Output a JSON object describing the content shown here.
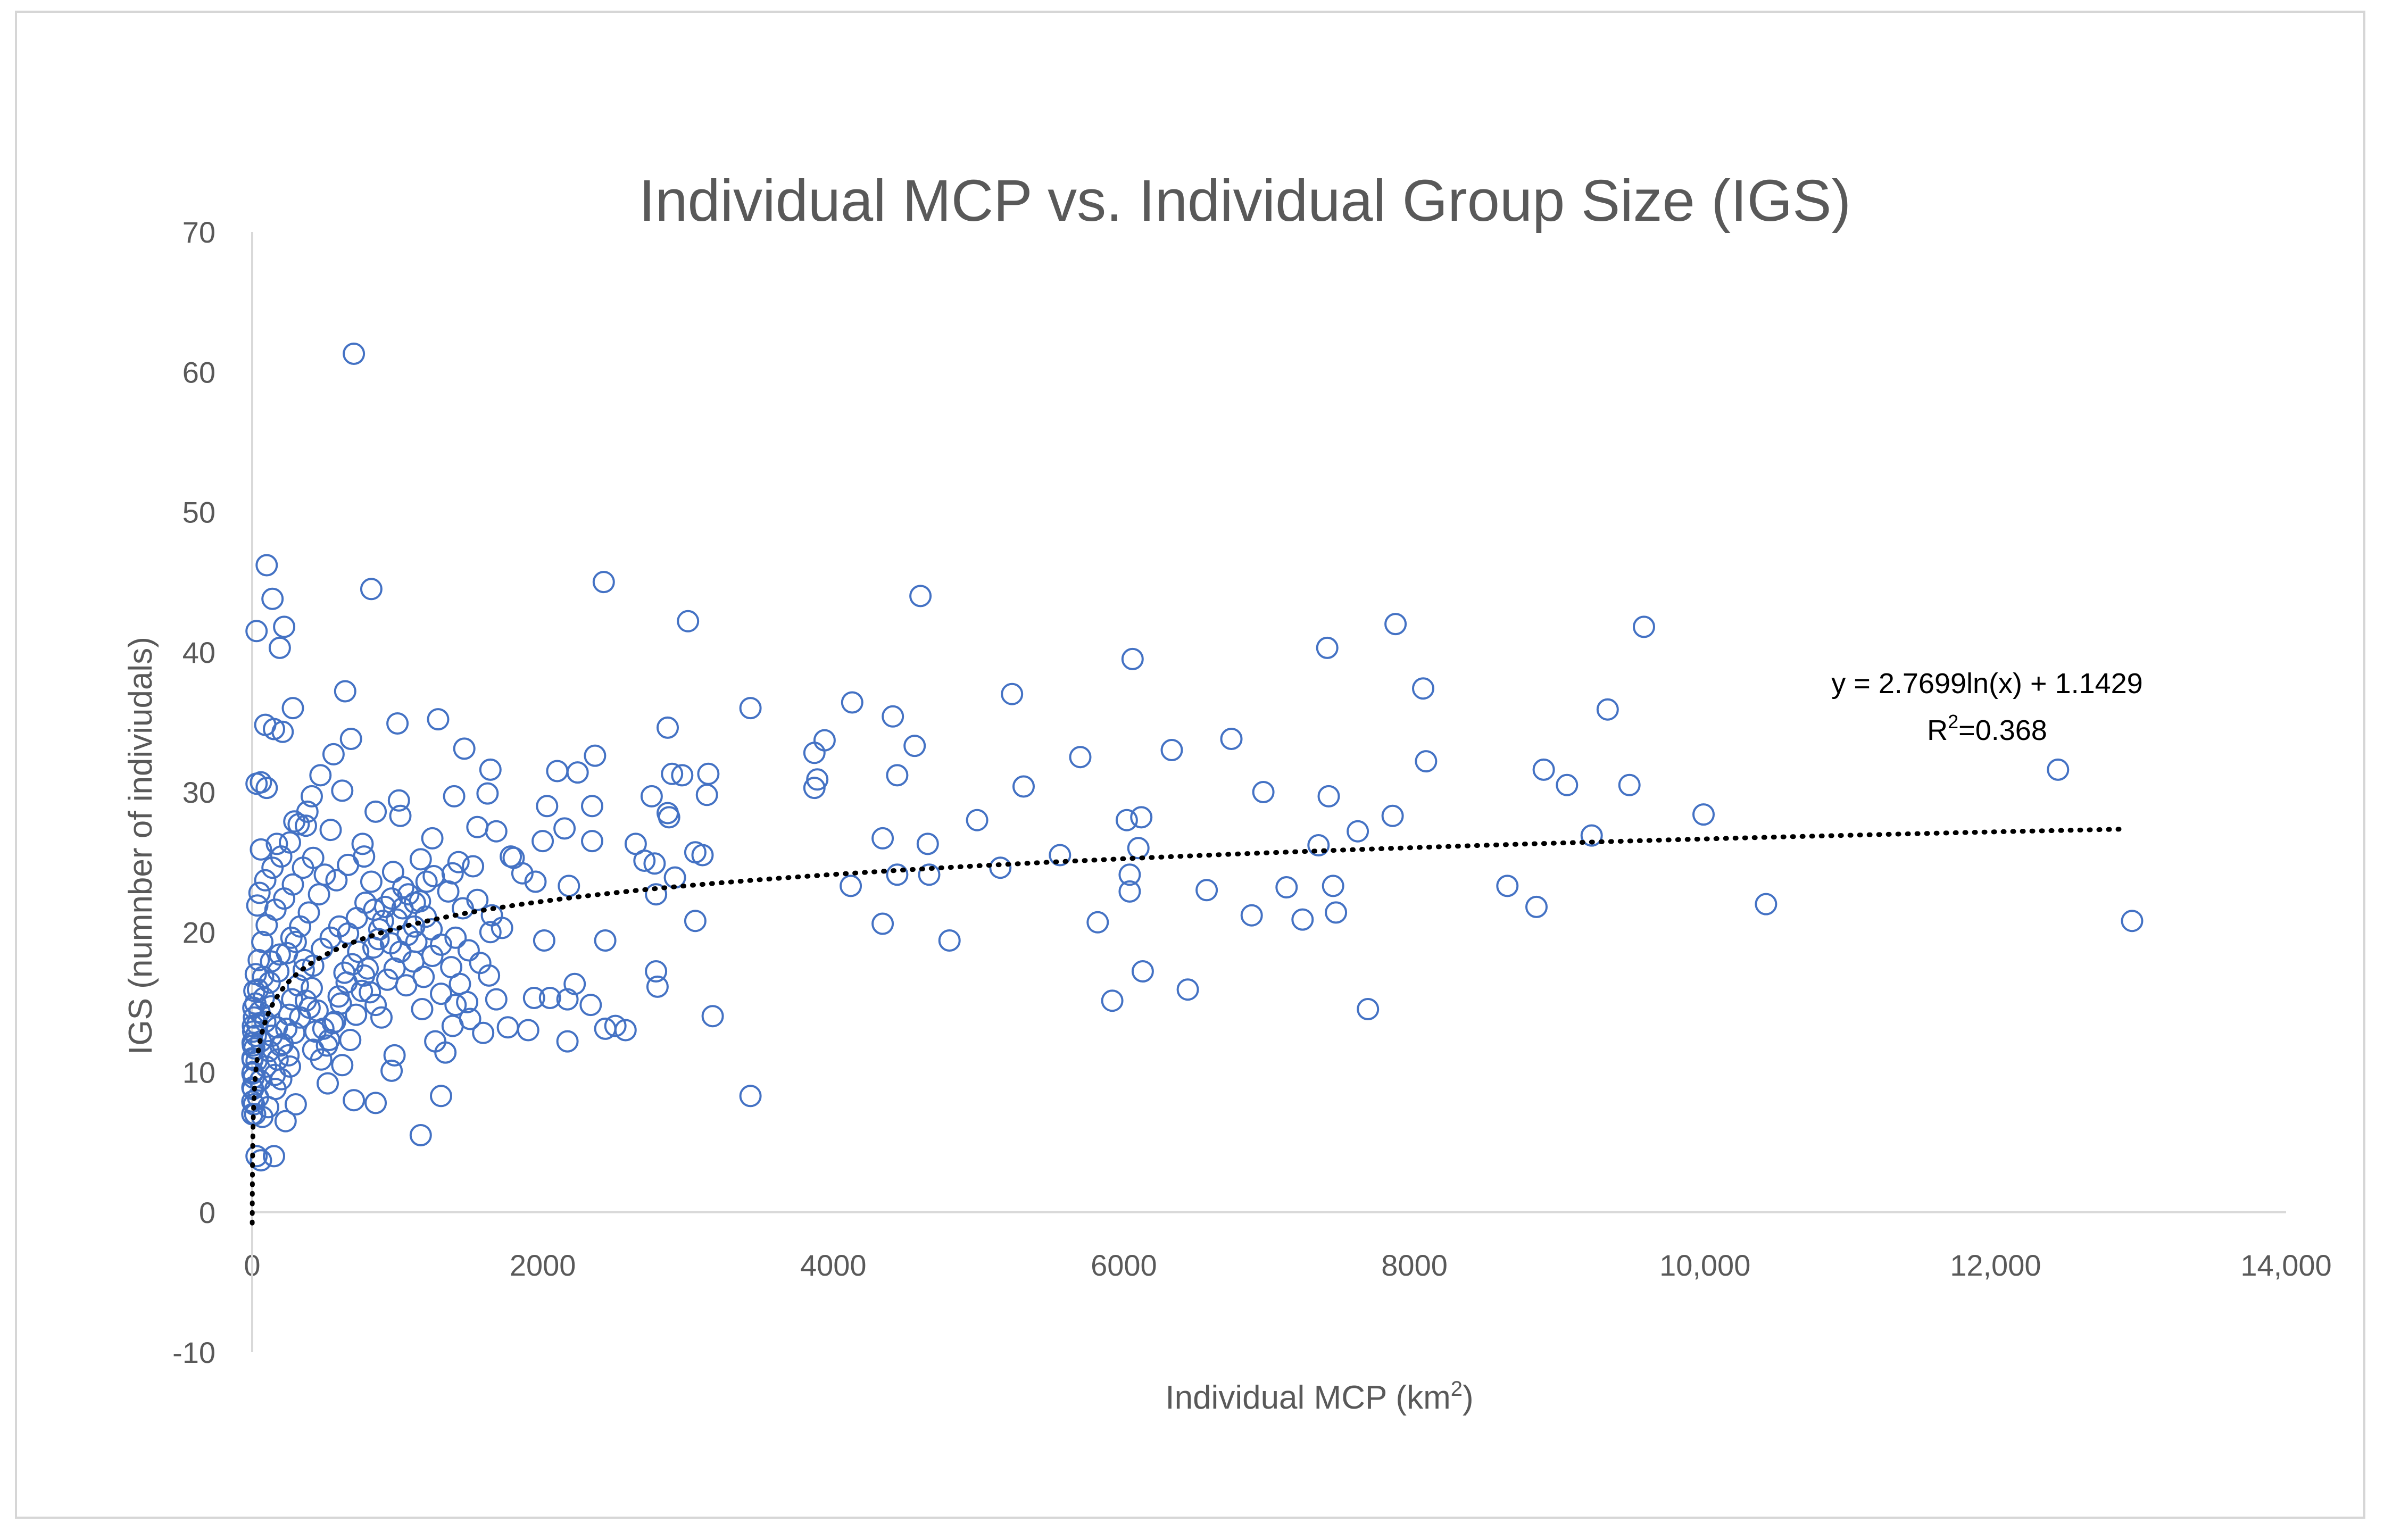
{
  "chart_data": {
    "type": "scatter",
    "title": "Individual MCP vs. Individual Group Size (IGS)",
    "xlabel": "Individual MCP (km",
    "xlabel_sup": "2",
    "xlabel_close": ")",
    "ylabel": "IGS (numnber of indiviudals)",
    "xlim": [
      0,
      14000
    ],
    "ylim": [
      -10,
      70
    ],
    "x_ticks": [
      {
        "value": 0,
        "label": "0"
      },
      {
        "value": 2000,
        "label": "2000"
      },
      {
        "value": 4000,
        "label": "4000"
      },
      {
        "value": 6000,
        "label": "6000"
      },
      {
        "value": 8000,
        "label": "8000"
      },
      {
        "value": 10000,
        "label": "10,000"
      },
      {
        "value": 12000,
        "label": "12,000"
      },
      {
        "value": 14000,
        "label": "14,000"
      }
    ],
    "y_ticks": [
      {
        "value": -10,
        "label": "-10"
      },
      {
        "value": 0,
        "label": "0"
      },
      {
        "value": 10,
        "label": "10"
      },
      {
        "value": 20,
        "label": "20"
      },
      {
        "value": 30,
        "label": "30"
      },
      {
        "value": 40,
        "label": "40"
      },
      {
        "value": 50,
        "label": "50"
      },
      {
        "value": 60,
        "label": "60"
      },
      {
        "value": 70,
        "label": "70"
      }
    ],
    "grid": false,
    "marker_color": "#4472C4",
    "trendline": {
      "type": "logarithmic",
      "a": 2.7699,
      "b": 1.1429,
      "x_range": [
        0.5,
        12900
      ],
      "equation_label": "y = 2.7699ln(x) + 1.1429",
      "r2_prefix": "R",
      "r2_sup": "2",
      "r2_value": "=0.368",
      "color": "#000000"
    },
    "points": [
      [
        700,
        61.3
      ],
      [
        820,
        44.5
      ],
      [
        2420,
        45
      ],
      [
        4600,
        44
      ],
      [
        100,
        46.2
      ],
      [
        140,
        43.8
      ],
      [
        30,
        41.5
      ],
      [
        220,
        41.8
      ],
      [
        190,
        40.3
      ],
      [
        3000,
        42.2
      ],
      [
        7870,
        42
      ],
      [
        9580,
        41.8
      ],
      [
        7400,
        40.3
      ],
      [
        6060,
        39.5
      ],
      [
        8060,
        37.4
      ],
      [
        640,
        37.2
      ],
      [
        280,
        36
      ],
      [
        3430,
        36
      ],
      [
        4130,
        36.4
      ],
      [
        5230,
        37
      ],
      [
        9330,
        35.9
      ],
      [
        4410,
        35.4
      ],
      [
        1000,
        34.9
      ],
      [
        1280,
        35.2
      ],
      [
        90,
        34.8
      ],
      [
        150,
        34.5
      ],
      [
        210,
        34.3
      ],
      [
        2860,
        34.6
      ],
      [
        3940,
        33.7
      ],
      [
        4560,
        33.3
      ],
      [
        6330,
        33
      ],
      [
        6740,
        33.8
      ],
      [
        680,
        33.8
      ],
      [
        560,
        32.7
      ],
      [
        1460,
        33.1
      ],
      [
        2360,
        32.6
      ],
      [
        3870,
        32.8
      ],
      [
        5700,
        32.5
      ],
      [
        8080,
        32.2
      ],
      [
        8890,
        31.6
      ],
      [
        12430,
        31.6
      ],
      [
        2100,
        31.5
      ],
      [
        2240,
        31.4
      ],
      [
        1640,
        31.6
      ],
      [
        3140,
        31.3
      ],
      [
        2890,
        31.3
      ],
      [
        2960,
        31.2
      ],
      [
        3890,
        30.9
      ],
      [
        4440,
        31.2
      ],
      [
        5310,
        30.4
      ],
      [
        9050,
        30.5
      ],
      [
        9480,
        30.5
      ],
      [
        3870,
        30.3
      ],
      [
        3130,
        29.8
      ],
      [
        2750,
        29.7
      ],
      [
        6960,
        30
      ],
      [
        7410,
        29.7
      ],
      [
        1390,
        29.7
      ],
      [
        1010,
        29.4
      ],
      [
        410,
        29.7
      ],
      [
        30,
        30.6
      ],
      [
        60,
        30.7
      ],
      [
        100,
        30.3
      ],
      [
        1620,
        29.9
      ],
      [
        2030,
        29
      ],
      [
        2340,
        29
      ],
      [
        2870,
        28.2
      ],
      [
        2860,
        28.5
      ],
      [
        6020,
        28
      ],
      [
        6120,
        28.2
      ],
      [
        7850,
        28.3
      ],
      [
        9990,
        28.4
      ],
      [
        4990,
        28
      ],
      [
        1020,
        28.3
      ],
      [
        850,
        28.6
      ],
      [
        290,
        27.9
      ],
      [
        370,
        27.6
      ],
      [
        540,
        27.3
      ],
      [
        1550,
        27.5
      ],
      [
        1680,
        27.2
      ],
      [
        2150,
        27.4
      ],
      [
        7610,
        27.2
      ],
      [
        9220,
        26.9
      ],
      [
        4340,
        26.7
      ],
      [
        4650,
        26.3
      ],
      [
        6100,
        26
      ],
      [
        7340,
        26.2
      ],
      [
        2640,
        26.3
      ],
      [
        2340,
        26.5
      ],
      [
        2000,
        26.5
      ],
      [
        1240,
        26.7
      ],
      [
        760,
        26.3
      ],
      [
        60,
        25.9
      ],
      [
        170,
        26.3
      ],
      [
        3050,
        25.7
      ],
      [
        3100,
        25.5
      ],
      [
        5560,
        25.5
      ],
      [
        2700,
        25.1
      ],
      [
        2770,
        24.9
      ],
      [
        1420,
        25
      ],
      [
        1160,
        25.2
      ],
      [
        1780,
        25.4
      ],
      [
        5150,
        24.6
      ],
      [
        6040,
        24.1
      ],
      [
        4440,
        24.1
      ],
      [
        4660,
        24.1
      ],
      [
        2910,
        23.9
      ],
      [
        2780,
        22.7
      ],
      [
        1950,
        23.6
      ],
      [
        2180,
        23.3
      ],
      [
        1250,
        24
      ],
      [
        970,
        24.3
      ],
      [
        820,
        23.6
      ],
      [
        4120,
        23.3
      ],
      [
        6040,
        22.9
      ],
      [
        6570,
        23
      ],
      [
        7120,
        23.2
      ],
      [
        7440,
        23.3
      ],
      [
        8640,
        23.3
      ],
      [
        10420,
        22
      ],
      [
        8840,
        21.8
      ],
      [
        6880,
        21.2
      ],
      [
        7230,
        20.9
      ],
      [
        7460,
        21.4
      ],
      [
        12940,
        20.8
      ],
      [
        5820,
        20.7
      ],
      [
        4340,
        20.6
      ],
      [
        3050,
        20.8
      ],
      [
        2430,
        19.4
      ],
      [
        4800,
        19.4
      ],
      [
        2010,
        19.4
      ],
      [
        1640,
        20
      ],
      [
        1400,
        19.6
      ],
      [
        1130,
        19.3
      ],
      [
        870,
        19.5
      ],
      [
        6130,
        17.2
      ],
      [
        6440,
        15.9
      ],
      [
        5920,
        15.1
      ],
      [
        7680,
        14.5
      ],
      [
        3170,
        14
      ],
      [
        2780,
        17.2
      ],
      [
        2790,
        16.1
      ],
      [
        2220,
        16.3
      ],
      [
        2170,
        15.2
      ],
      [
        1940,
        15.3
      ],
      [
        2050,
        15.3
      ],
      [
        2330,
        14.8
      ],
      [
        2430,
        13.1
      ],
      [
        2500,
        13.3
      ],
      [
        2570,
        13
      ],
      [
        2170,
        12.2
      ],
      [
        1900,
        13
      ],
      [
        1760,
        13.2
      ],
      [
        1590,
        12.8
      ],
      [
        1480,
        15
      ],
      [
        1400,
        14.8
      ],
      [
        1300,
        15.6
      ],
      [
        1170,
        14.5
      ],
      [
        1060,
        16.2
      ],
      [
        3430,
        8.3
      ],
      [
        1160,
        5.5
      ],
      [
        1300,
        8.3
      ],
      [
        1330,
        11.4
      ],
      [
        980,
        11.2
      ],
      [
        960,
        10.1
      ],
      [
        850,
        7.8
      ],
      [
        700,
        8
      ],
      [
        620,
        10.5
      ],
      [
        520,
        9.2
      ],
      [
        420,
        11.6
      ],
      [
        300,
        7.7
      ],
      [
        230,
        6.5
      ],
      [
        150,
        4
      ],
      [
        60,
        3.7
      ],
      [
        30,
        4
      ],
      [
        70,
        6.8
      ],
      [
        110,
        7.5
      ],
      [
        160,
        8.8
      ],
      [
        200,
        9.5
      ],
      [
        260,
        10.4
      ],
      [
        40,
        8.2
      ],
      [
        20,
        7
      ],
      [
        10,
        9.6
      ],
      [
        15,
        11.7
      ],
      [
        25,
        12.6
      ],
      [
        35,
        13.4
      ],
      [
        50,
        14.3
      ],
      [
        80,
        15.3
      ],
      [
        120,
        16.4
      ],
      [
        180,
        17.2
      ],
      [
        240,
        18.5
      ],
      [
        300,
        19.3
      ],
      [
        360,
        18
      ],
      [
        420,
        17.6
      ],
      [
        480,
        18.8
      ],
      [
        540,
        19.6
      ],
      [
        600,
        20.4
      ],
      [
        660,
        19.9
      ],
      [
        720,
        21
      ],
      [
        780,
        22.1
      ],
      [
        840,
        21.6
      ],
      [
        900,
        20.8
      ],
      [
        960,
        22.4
      ],
      [
        1040,
        23.2
      ],
      [
        1120,
        22.1
      ],
      [
        1200,
        23.6
      ],
      [
        1350,
        22.9
      ],
      [
        1450,
        21.7
      ],
      [
        1550,
        22.3
      ],
      [
        1650,
        21.2
      ],
      [
        1720,
        20.3
      ],
      [
        500,
        24.1
      ],
      [
        420,
        25.3
      ],
      [
        350,
        24.6
      ],
      [
        280,
        23.4
      ],
      [
        220,
        22.4
      ],
      [
        160,
        21.6
      ],
      [
        100,
        20.5
      ],
      [
        70,
        19.3
      ],
      [
        45,
        18
      ],
      [
        25,
        17
      ],
      [
        15,
        15.8
      ],
      [
        8,
        14.6
      ],
      [
        5,
        13.3
      ],
      [
        3,
        12.1
      ],
      [
        2,
        11
      ],
      [
        4,
        10
      ],
      [
        6,
        8.8
      ],
      [
        12,
        7.7
      ],
      [
        30,
        10.8
      ],
      [
        60,
        12.2
      ],
      [
        90,
        13.6
      ],
      [
        130,
        14.7
      ],
      [
        170,
        13.2
      ],
      [
        210,
        12
      ],
      [
        250,
        11.2
      ],
      [
        290,
        12.8
      ],
      [
        330,
        13.9
      ],
      [
        370,
        15.1
      ],
      [
        410,
        16
      ],
      [
        450,
        14.4
      ],
      [
        490,
        13.1
      ],
      [
        530,
        12.3
      ],
      [
        570,
        13.6
      ],
      [
        610,
        14.9
      ],
      [
        650,
        16.4
      ],
      [
        690,
        17.7
      ],
      [
        730,
        18.6
      ],
      [
        770,
        16.9
      ],
      [
        810,
        15.7
      ],
      [
        850,
        14.8
      ],
      [
        890,
        13.9
      ],
      [
        930,
        16.6
      ],
      [
        980,
        17.4
      ],
      [
        1020,
        18.6
      ],
      [
        1070,
        19.8
      ],
      [
        1110,
        17.9
      ],
      [
        1180,
        16.8
      ],
      [
        1240,
        18.3
      ],
      [
        1300,
        19.1
      ],
      [
        1370,
        17.5
      ],
      [
        1430,
        16.3
      ],
      [
        1490,
        18.7
      ],
      [
        1570,
        17.8
      ],
      [
        1630,
        16.9
      ],
      [
        1680,
        15.2
      ],
      [
        1500,
        13.8
      ],
      [
        1380,
        13.3
      ],
      [
        1260,
        12.2
      ],
      [
        620,
        30.1
      ],
      [
        470,
        31.2
      ],
      [
        380,
        28.6
      ],
      [
        320,
        27.7
      ],
      [
        260,
        26.4
      ],
      [
        200,
        25.4
      ],
      [
        140,
        24.6
      ],
      [
        90,
        23.7
      ],
      [
        50,
        22.8
      ],
      [
        35,
        21.9
      ],
      [
        1800,
        25.3
      ],
      [
        1860,
        24.2
      ],
      [
        1520,
        24.7
      ],
      [
        1380,
        24.2
      ],
      [
        770,
        25.4
      ],
      [
        660,
        24.8
      ],
      [
        580,
        23.7
      ],
      [
        460,
        22.7
      ],
      [
        390,
        21.4
      ],
      [
        330,
        20.4
      ],
      [
        270,
        19.6
      ],
      [
        190,
        18.4
      ],
      [
        130,
        17.9
      ],
      [
        75,
        16.8
      ],
      [
        40,
        15.9
      ],
      [
        22,
        14.9
      ],
      [
        12,
        13.9
      ],
      [
        7,
        12.9
      ],
      [
        5,
        11.9
      ],
      [
        3,
        10.9
      ],
      [
        2,
        9.9
      ],
      [
        1.5,
        8.9
      ],
      [
        1.2,
        7.9
      ],
      [
        1,
        7
      ],
      [
        55,
        9.4
      ],
      [
        95,
        10.4
      ],
      [
        115,
        11.5
      ],
      [
        135,
        12.6
      ],
      [
        155,
        9.8
      ],
      [
        175,
        10.9
      ],
      [
        195,
        11.9
      ],
      [
        235,
        13.1
      ],
      [
        255,
        14.1
      ],
      [
        275,
        15.2
      ],
      [
        315,
        16.2
      ],
      [
        355,
        17.3
      ],
      [
        395,
        14.6
      ],
      [
        435,
        12.9
      ],
      [
        475,
        10.9
      ],
      [
        515,
        11.9
      ],
      [
        555,
        13.5
      ],
      [
        595,
        15.4
      ],
      [
        635,
        17.1
      ],
      [
        675,
        12.3
      ],
      [
        715,
        14.1
      ],
      [
        755,
        15.8
      ],
      [
        795,
        17.4
      ],
      [
        835,
        18.9
      ],
      [
        875,
        20.2
      ],
      [
        915,
        21.8
      ],
      [
        955,
        19.2
      ],
      [
        995,
        20.9
      ],
      [
        1035,
        21.7
      ],
      [
        1075,
        22.7
      ],
      [
        1115,
        20.4
      ],
      [
        1155,
        22.2
      ],
      [
        1195,
        21.1
      ],
      [
        1235,
        20.2
      ]
    ]
  }
}
